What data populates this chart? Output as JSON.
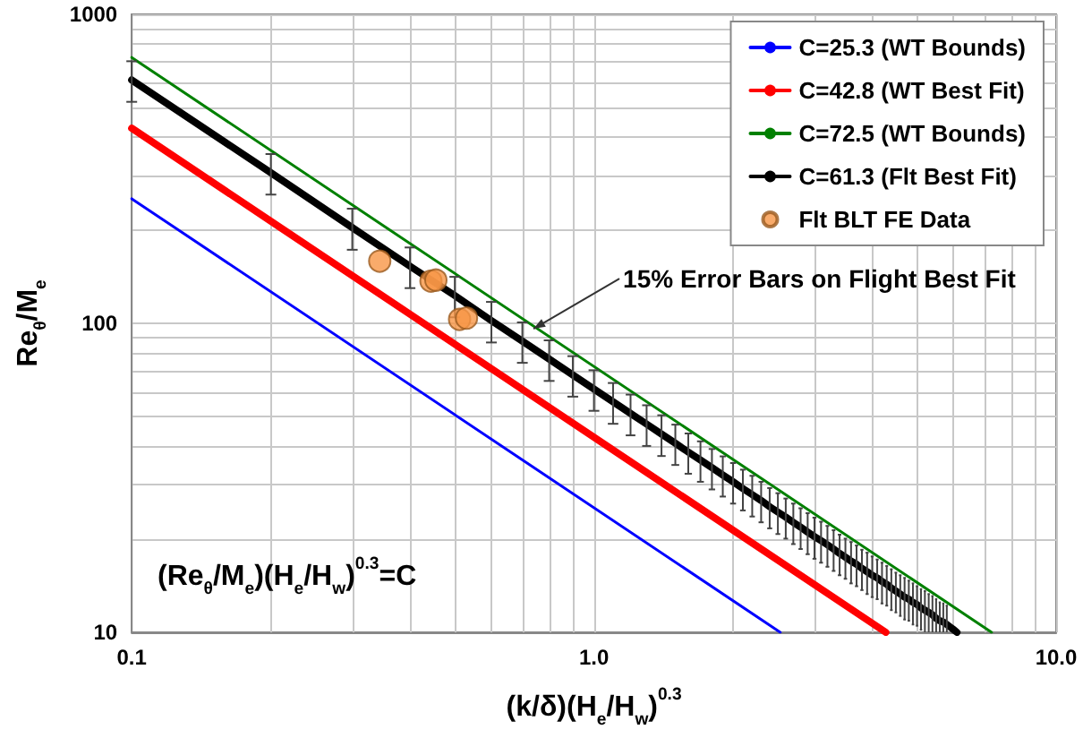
{
  "chart_data": {
    "type": "line",
    "xlabel": "(k/δ)(H$_{e}$/H$_{w}$)$^{0.3}$",
    "ylabel": "Re$_{θ}$/M$_{e}$",
    "log": "xy",
    "grid": true,
    "legend": "top right",
    "xlim": [
      0.1,
      10
    ],
    "ylim": [
      10,
      1000
    ],
    "xticks": [
      {
        "value": 0.1,
        "label": "0.1"
      },
      {
        "value": 0.2,
        "label": null
      },
      {
        "value": 0.3,
        "label": null
      },
      {
        "value": 0.4,
        "label": null
      },
      {
        "value": 0.5,
        "label": null
      },
      {
        "value": 0.6,
        "label": null
      },
      {
        "value": 0.7,
        "label": null
      },
      {
        "value": 0.8,
        "label": null
      },
      {
        "value": 0.9,
        "label": null
      },
      {
        "value": 1,
        "label": "1.0"
      },
      {
        "value": 2,
        "label": null
      },
      {
        "value": 3,
        "label": null
      },
      {
        "value": 4,
        "label": null
      },
      {
        "value": 5,
        "label": null
      },
      {
        "value": 6,
        "label": null
      },
      {
        "value": 7,
        "label": null
      },
      {
        "value": 8,
        "label": null
      },
      {
        "value": 9,
        "label": null
      },
      {
        "value": 10,
        "label": "10.0"
      }
    ],
    "yticks": [
      10,
      {
        "value": 20,
        "label": null
      },
      {
        "value": 30,
        "label": null
      },
      {
        "value": 40,
        "label": null
      },
      {
        "value": 50,
        "label": null
      },
      {
        "value": 60,
        "label": null
      },
      {
        "value": 70,
        "label": null
      },
      {
        "value": 80,
        "label": null
      },
      {
        "value": 90,
        "label": null
      },
      100,
      {
        "value": 200,
        "label": null
      },
      {
        "value": 300,
        "label": null
      },
      {
        "value": 400,
        "label": null
      },
      {
        "value": 500,
        "label": null
      },
      {
        "value": 600,
        "label": null
      },
      {
        "value": 700,
        "label": null
      },
      {
        "value": 800,
        "label": null
      },
      {
        "value": 900,
        "label": null
      },
      1000
    ],
    "series": [
      {
        "name": "C=25.3 (WT Bounds)",
        "color": "#0000ff",
        "x": [
          0.1,
          2.53
        ],
        "values": [
          253,
          10
        ]
      },
      {
        "name": "C=42.8 (WT Best Fit)",
        "color": "#ff0000",
        "x": [
          0.1,
          4.28
        ],
        "values": [
          428,
          10
        ]
      },
      {
        "name": "C=72.5 (WT Bounds)",
        "color": "#008000",
        "x": [
          0.1,
          7.25
        ],
        "values": [
          725,
          10
        ]
      },
      {
        "name": "C=61.3 (Flt Best Fit)",
        "color": "#000000",
        "x": [
          0.1,
          0.2,
          0.3,
          0.4,
          0.5,
          0.6,
          0.7,
          0.8,
          0.9,
          1.0,
          1.1,
          1.2,
          1.3,
          1.4,
          1.5,
          1.6,
          1.7,
          1.8,
          1.9,
          2.0,
          2.1,
          2.2,
          2.3,
          2.4,
          2.5,
          2.6,
          2.7,
          2.8,
          2.9,
          3.0,
          3.1,
          3.2,
          3.3,
          3.4,
          3.5,
          3.6,
          3.7,
          3.8,
          3.9,
          4.0,
          4.1,
          4.2,
          4.3,
          4.4,
          4.5,
          4.6,
          4.7,
          4.8,
          4.9,
          5.0,
          5.1,
          5.2,
          5.3,
          5.4,
          5.5,
          5.6,
          5.7,
          5.8,
          5.9,
          6.0,
          6.1
        ],
        "values": [
          613,
          307,
          204,
          153,
          123,
          102,
          87.6,
          76.6,
          68.1,
          61.3,
          55.7,
          51.1,
          47.2,
          43.8,
          40.9,
          38.3,
          36.1,
          34.1,
          32.3,
          30.7,
          29.2,
          27.9,
          26.7,
          25.5,
          24.5,
          23.6,
          22.7,
          21.9,
          21.1,
          20.4,
          19.8,
          19.2,
          18.6,
          18.0,
          17.5,
          17.0,
          16.6,
          16.1,
          15.7,
          15.3,
          15.0,
          14.6,
          14.3,
          13.9,
          13.6,
          13.3,
          13.0,
          12.8,
          12.5,
          12.3,
          12.0,
          11.8,
          11.6,
          11.4,
          11.1,
          10.9,
          10.8,
          10.6,
          10.4,
          10.2,
          10.0
        ],
        "errors": [
          92,
          46,
          31,
          23,
          18.4,
          15.3,
          13.1,
          11.5,
          10.2,
          9.2,
          8.4,
          7.7,
          7.1,
          6.6,
          6.1,
          5.7,
          5.4,
          5.1,
          4.8,
          4.6,
          4.4,
          4.2,
          4.0,
          3.8,
          3.7,
          3.5,
          3.4,
          3.3,
          3.2,
          3.1,
          3.0,
          2.9,
          2.8,
          2.7,
          2.6,
          2.6,
          2.5,
          2.4,
          2.4,
          2.3,
          2.2,
          2.2,
          2.1,
          2.1,
          2.0,
          2.0,
          2.0,
          1.9,
          1.9,
          1.8,
          1.8,
          1.8,
          [
            10,
            13.3
          ],
          [
            10,
            13.1
          ],
          [
            10,
            12.8
          ],
          [
            10,
            12.5
          ],
          [
            10,
            12.4
          ],
          [
            10,
            12.2
          ],
          null,
          null,
          null
        ]
      },
      {
        "name": "Flt BLT FE Data",
        "type": "scatter",
        "color": "#f79646",
        "marker": "circle",
        "x": [
          0.344,
          0.444,
          0.455,
          0.512,
          0.53
        ],
        "values": [
          159,
          137,
          138,
          103,
          104
        ]
      }
    ],
    "annotations": [
      {
        "text": "15% Error Bars on Flight Best Fit",
        "x": 0.74,
        "y": 96
      },
      "(Re$_{θ}$/M$_{e}$)(H$_{e}$/H$_{w}$)$^{0.3}$=C"
    ]
  }
}
